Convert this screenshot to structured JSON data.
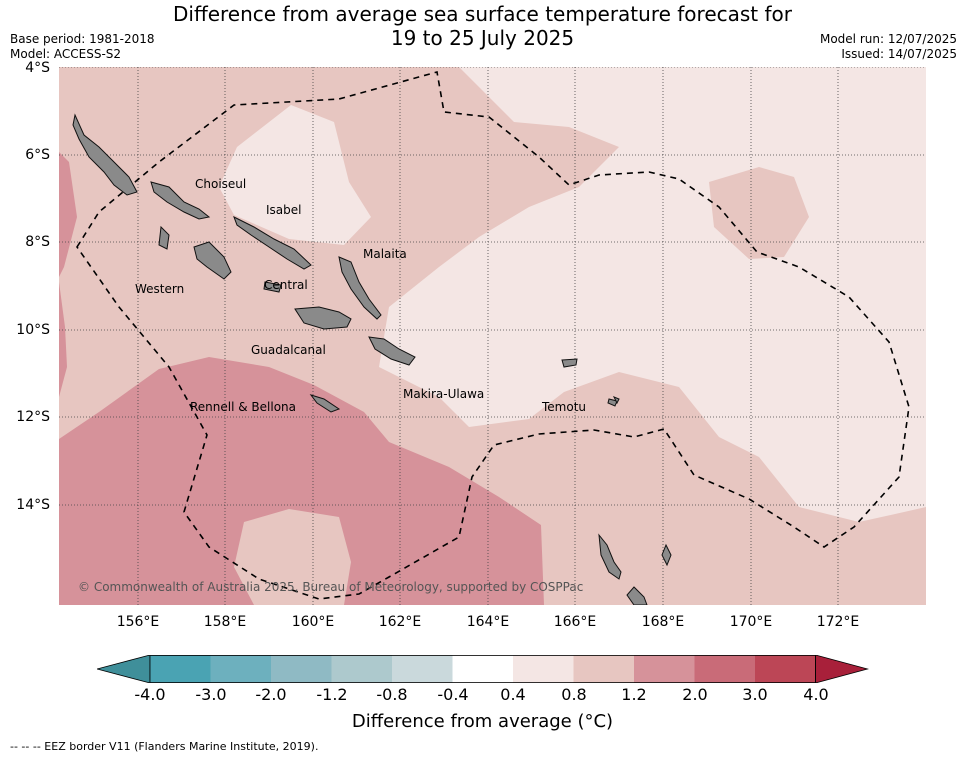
{
  "title_line1": "Difference from average sea surface temperature forecast for",
  "title_line2": "19 to 25 July 2025",
  "base_period": "Base period: 1981-2018",
  "model": "Model: ACCESS-S2",
  "model_run": "Model run: 12/07/2025",
  "issued": "Issued: 14/07/2025",
  "lat_labels": [
    "4°S",
    "6°S",
    "8°S",
    "10°S",
    "12°S",
    "14°S"
  ],
  "lon_labels": [
    "156°E",
    "158°E",
    "160°E",
    "162°E",
    "164°E",
    "166°E",
    "168°E",
    "170°E",
    "172°E"
  ],
  "regions": [
    "Choiseul",
    "Isabel",
    "Malaita",
    "Western",
    "Central",
    "Guadalcanal",
    "Makira-Ulawa",
    "Temotu",
    "Rennell & Bellona"
  ],
  "copyright": "© Commonwealth of Australia 2025, Bureau of Meteorology, supported by COSPPac",
  "colorbar": {
    "labels": [
      "-4.0",
      "-3.0",
      "-2.0",
      "-1.2",
      "-0.8",
      "-0.4",
      "0.4",
      "0.8",
      "1.2",
      "2.0",
      "3.0",
      "4.0"
    ],
    "colors": [
      "#3f8f9a",
      "#4aa3b3",
      "#6db0be",
      "#8fbac4",
      "#adc9cd",
      "#cad9dc",
      "#ffffff",
      "#f4e6e4",
      "#e7c6c1",
      "#d6929a",
      "#c96b78",
      "#bc4656",
      "#a8203a"
    ],
    "title": "Difference from average (°C)"
  },
  "eez_note": "-- -- -- EEZ border V11 (Flanders Marine Institute, 2019)."
}
